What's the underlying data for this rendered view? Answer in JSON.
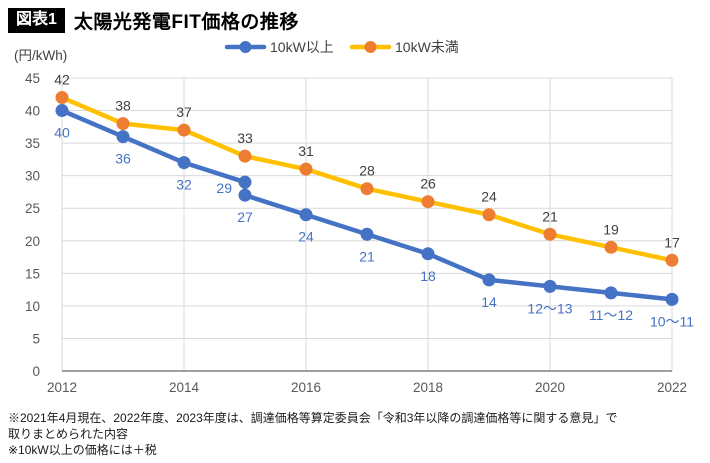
{
  "header": {
    "tag": "図表1",
    "title": "太陽光発電FIT価格の推移"
  },
  "chart_data": {
    "type": "line",
    "title": "太陽光発電FIT価格の推移",
    "unit_label": "(円/kWh)",
    "ylim": [
      0,
      45
    ],
    "ytick_step": 5,
    "xlim": [
      2012,
      2022
    ],
    "xticks": [
      2012,
      2014,
      2016,
      2018,
      2020,
      2022
    ],
    "grid": true,
    "legend_position": "top",
    "colors": {
      "blue": "#4472C4",
      "gold_line": "#FFC000",
      "orange_marker": "#ED7D31",
      "gridline": "#D9D9D9",
      "axis": "#808080",
      "dark_label": "#404040"
    },
    "series": [
      {
        "name": "10kW以上",
        "line_color": "#4472C4",
        "marker_color": "#4472C4",
        "label_color": "#4472C4",
        "label_side": "below",
        "points": [
          {
            "x": 2012,
            "y": 40,
            "label": "40"
          },
          {
            "x": 2013,
            "y": 36,
            "label": "36"
          },
          {
            "x": 2014,
            "y": 32,
            "label": "32"
          },
          {
            "x": 2015,
            "y": 29,
            "label": "29",
            "lpos": "left"
          },
          {
            "x": 2015,
            "y": 27,
            "label": "27"
          },
          {
            "x": 2016,
            "y": 24,
            "label": "24"
          },
          {
            "x": 2017,
            "y": 21,
            "label": "21"
          },
          {
            "x": 2018,
            "y": 18,
            "label": "18"
          },
          {
            "x": 2019,
            "y": 14,
            "label": "14"
          },
          {
            "x": 2020,
            "y": 13,
            "label": "12～13"
          },
          {
            "x": 2021,
            "y": 12,
            "label": "11～12"
          },
          {
            "x": 2022,
            "y": 11,
            "label": "10～11"
          }
        ]
      },
      {
        "name": "10kW未満",
        "line_color": "#FFC000",
        "marker_color": "#ED7D31",
        "label_color": "#404040",
        "label_side": "above",
        "points": [
          {
            "x": 2012,
            "y": 42,
            "label": "42"
          },
          {
            "x": 2013,
            "y": 38,
            "label": "38"
          },
          {
            "x": 2014,
            "y": 37,
            "label": "37"
          },
          {
            "x": 2015,
            "y": 33,
            "label": "33"
          },
          {
            "x": 2016,
            "y": 31,
            "label": "31"
          },
          {
            "x": 2017,
            "y": 28,
            "label": "28"
          },
          {
            "x": 2018,
            "y": 26,
            "label": "26"
          },
          {
            "x": 2019,
            "y": 24,
            "label": "24"
          },
          {
            "x": 2020,
            "y": 21,
            "label": "21"
          },
          {
            "x": 2021,
            "y": 19,
            "label": "19"
          },
          {
            "x": 2022,
            "y": 17,
            "label": "17"
          }
        ]
      }
    ]
  },
  "footnotes": [
    "※2021年4月現在、2022年度、2023年度は、調達価格等算定委員会「令和3年以降の調達価格等に関する意見」で\n取りまとめられた内容",
    "※10kW以上の価格には＋税"
  ]
}
